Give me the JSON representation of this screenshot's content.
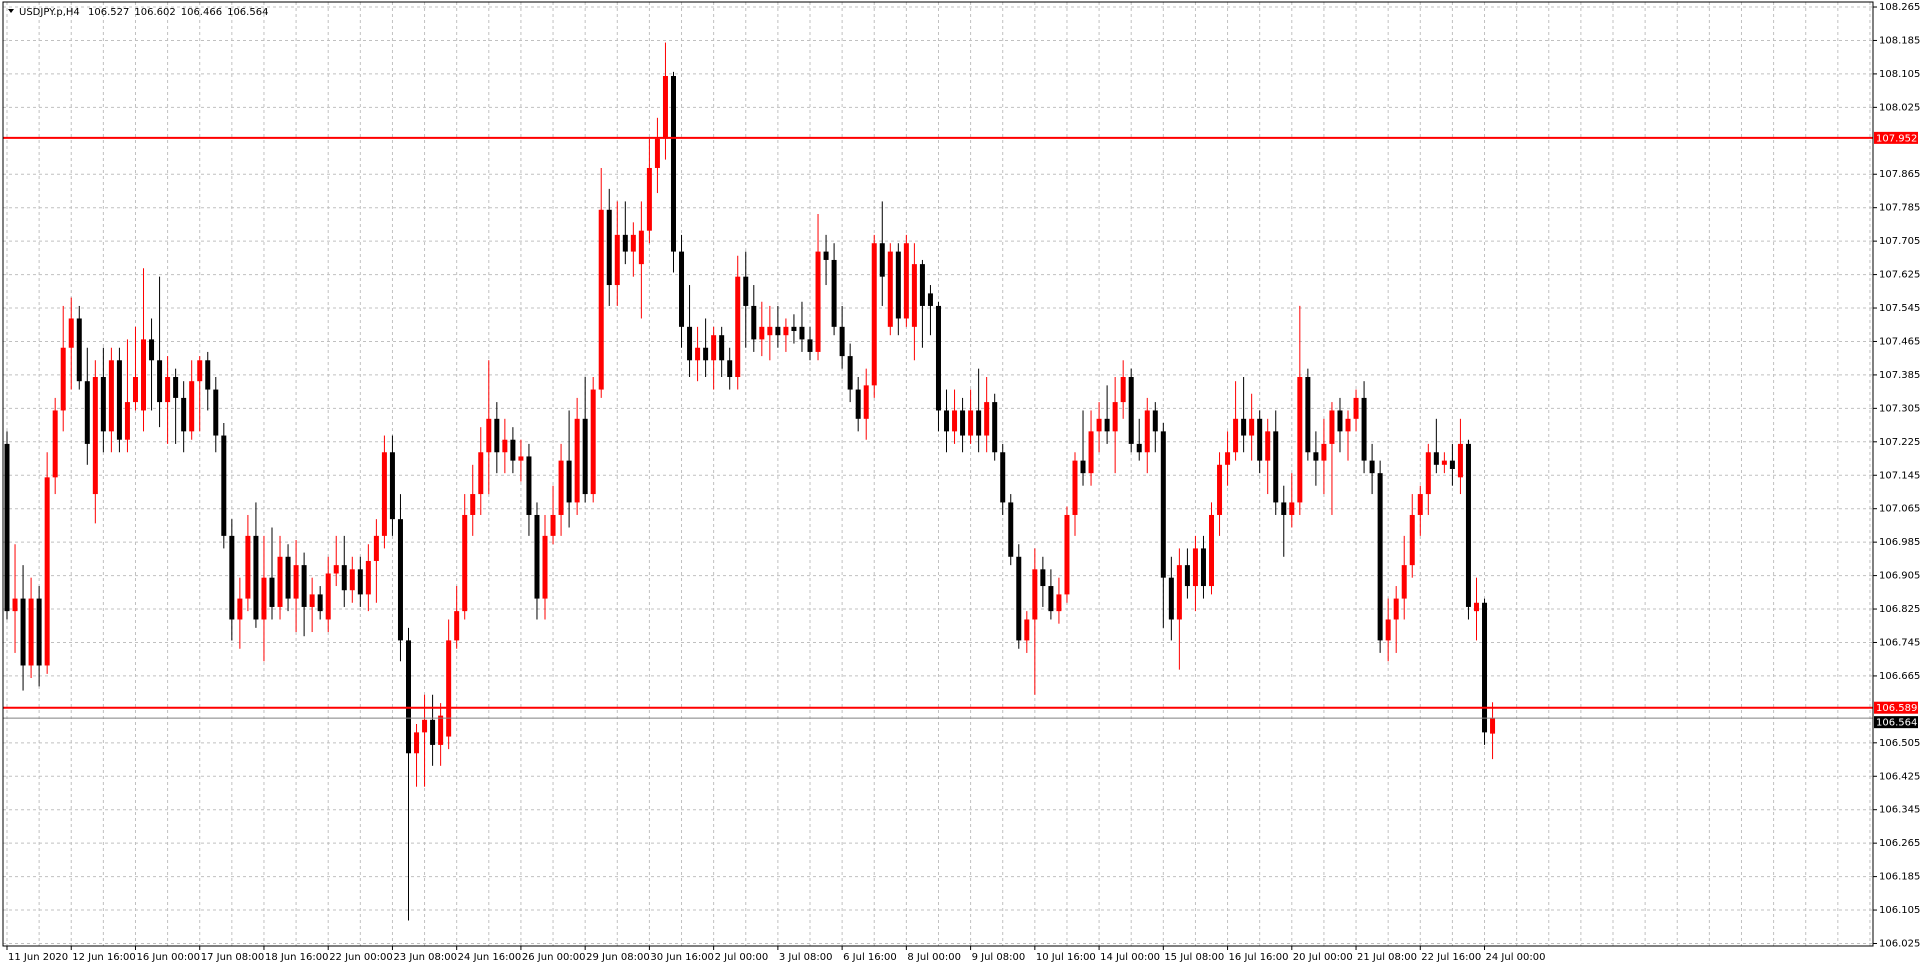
{
  "chart_data": {
    "type": "candlestick",
    "symbol": "USDJPY.p,H4",
    "header_values": [
      106.527,
      106.602,
      106.466,
      106.564
    ],
    "categories": [
      "11 Jun 2020",
      null,
      null,
      null,
      null,
      null,
      null,
      null,
      "12 Jun 16:00",
      null,
      null,
      null,
      null,
      null,
      null,
      null,
      "16 Jun 00:00",
      null,
      null,
      null,
      null,
      null,
      null,
      null,
      "17 Jun 08:00",
      null,
      null,
      null,
      null,
      null,
      null,
      null,
      "18 Jun 16:00",
      null,
      null,
      null,
      null,
      null,
      null,
      null,
      "22 Jun 00:00",
      null,
      null,
      null,
      null,
      null,
      null,
      null,
      "23 Jun 08:00",
      null,
      null,
      null,
      null,
      null,
      null,
      null,
      "24 Jun 16:00",
      null,
      null,
      null,
      null,
      null,
      null,
      null,
      "26 Jun 00:00",
      null,
      null,
      null,
      null,
      null,
      null,
      null,
      "29 Jun 08:00",
      null,
      null,
      null,
      null,
      null,
      null,
      null,
      "30 Jun 16:00",
      null,
      null,
      null,
      null,
      null,
      null,
      null,
      "2 Jul 00:00",
      null,
      null,
      null,
      null,
      null,
      null,
      null,
      "3 Jul 08:00",
      null,
      null,
      null,
      null,
      null,
      null,
      null,
      "6 Jul 16:00",
      null,
      null,
      null,
      null,
      null,
      null,
      null,
      "8 Jul 00:00",
      null,
      null,
      null,
      null,
      null,
      null,
      null,
      "9 Jul 08:00",
      null,
      null,
      null,
      null,
      null,
      null,
      null,
      "10 Jul 16:00",
      null,
      null,
      null,
      null,
      null,
      null,
      null,
      "14 Jul 00:00",
      null,
      null,
      null,
      null,
      null,
      null,
      null,
      "15 Jul 08:00",
      null,
      null,
      null,
      null,
      null,
      null,
      null,
      "16 Jul 16:00",
      null,
      null,
      null,
      null,
      null,
      null,
      null,
      "20 Jul 00:00",
      null,
      null,
      null,
      null,
      null,
      null,
      null,
      "21 Jul 08:00",
      null,
      null,
      null,
      null,
      null,
      null,
      null,
      "22 Jul 16:00",
      null,
      null,
      null,
      null,
      null,
      null,
      null,
      "24 Jul 00:00",
      null
    ],
    "ohlc": [
      [
        107.22,
        107.25,
        106.8,
        106.82
      ],
      [
        106.82,
        106.98,
        106.72,
        106.85
      ],
      [
        106.85,
        106.93,
        106.63,
        106.69
      ],
      [
        106.69,
        106.9,
        106.66,
        106.85
      ],
      [
        106.85,
        106.88,
        106.64,
        106.69
      ],
      [
        106.69,
        107.2,
        106.67,
        107.14
      ],
      [
        107.14,
        107.33,
        107.1,
        107.3
      ],
      [
        107.3,
        107.55,
        107.25,
        107.45
      ],
      [
        107.45,
        107.57,
        107.35,
        107.52
      ],
      [
        107.52,
        107.55,
        107.35,
        107.37
      ],
      [
        107.37,
        107.45,
        107.17,
        107.22
      ],
      [
        107.1,
        107.42,
        107.03,
        107.38
      ],
      [
        107.38,
        107.45,
        107.2,
        107.25
      ],
      [
        107.25,
        107.45,
        107.2,
        107.42
      ],
      [
        107.42,
        107.45,
        107.2,
        107.23
      ],
      [
        107.23,
        107.47,
        107.2,
        107.32
      ],
      [
        107.32,
        107.5,
        107.3,
        107.38
      ],
      [
        107.3,
        107.64,
        107.25,
        107.47
      ],
      [
        107.47,
        107.52,
        107.3,
        107.42
      ],
      [
        107.42,
        107.62,
        107.26,
        107.32
      ],
      [
        107.32,
        107.43,
        107.22,
        107.38
      ],
      [
        107.38,
        107.4,
        107.22,
        107.33
      ],
      [
        107.33,
        107.37,
        107.2,
        107.25
      ],
      [
        107.25,
        107.42,
        107.23,
        107.37
      ],
      [
        107.37,
        107.43,
        107.25,
        107.42
      ],
      [
        107.42,
        107.44,
        107.3,
        107.35
      ],
      [
        107.35,
        107.38,
        107.2,
        107.24
      ],
      [
        107.24,
        107.27,
        106.97,
        107.0
      ],
      [
        107.0,
        107.04,
        106.75,
        106.8
      ],
      [
        106.8,
        106.9,
        106.73,
        106.85
      ],
      [
        106.85,
        107.05,
        106.82,
        107.0
      ],
      [
        107.0,
        107.08,
        106.78,
        106.8
      ],
      [
        106.8,
        107.0,
        106.7,
        106.9
      ],
      [
        106.9,
        107.02,
        106.8,
        106.83
      ],
      [
        106.83,
        107.0,
        106.8,
        106.95
      ],
      [
        106.95,
        106.98,
        106.82,
        106.85
      ],
      [
        106.85,
        106.99,
        106.77,
        106.93
      ],
      [
        106.93,
        106.96,
        106.76,
        106.83
      ],
      [
        106.83,
        106.9,
        106.77,
        106.86
      ],
      [
        106.86,
        106.88,
        106.8,
        106.82
      ],
      [
        106.8,
        106.95,
        106.77,
        106.91
      ],
      [
        106.91,
        107.0,
        106.88,
        106.93
      ],
      [
        106.93,
        107.0,
        106.83,
        106.87
      ],
      [
        106.87,
        106.95,
        106.84,
        106.92
      ],
      [
        106.92,
        106.95,
        106.83,
        106.86
      ],
      [
        106.86,
        106.98,
        106.82,
        106.94
      ],
      [
        106.94,
        107.04,
        106.84,
        107.0
      ],
      [
        107.0,
        107.24,
        106.97,
        107.2
      ],
      [
        107.2,
        107.24,
        107.0,
        107.04
      ],
      [
        107.04,
        107.1,
        106.7,
        106.75
      ],
      [
        106.75,
        106.78,
        106.08,
        106.48
      ],
      [
        106.48,
        106.55,
        106.4,
        106.53
      ],
      [
        106.53,
        106.62,
        106.4,
        106.56
      ],
      [
        106.56,
        106.62,
        106.45,
        106.5
      ],
      [
        106.5,
        106.6,
        106.45,
        106.57
      ],
      [
        106.52,
        106.8,
        106.49,
        106.75
      ],
      [
        106.75,
        106.88,
        106.73,
        106.82
      ],
      [
        106.82,
        107.1,
        106.8,
        107.05
      ],
      [
        107.05,
        107.17,
        107.0,
        107.1
      ],
      [
        107.1,
        107.26,
        107.05,
        107.2
      ],
      [
        107.2,
        107.42,
        107.1,
        107.28
      ],
      [
        107.28,
        107.32,
        107.15,
        107.2
      ],
      [
        107.2,
        107.28,
        107.15,
        107.23
      ],
      [
        107.23,
        107.26,
        107.15,
        107.18
      ],
      [
        107.18,
        107.23,
        107.13,
        107.19
      ],
      [
        107.19,
        107.22,
        107.0,
        107.05
      ],
      [
        107.05,
        107.08,
        106.8,
        106.85
      ],
      [
        106.85,
        107.05,
        106.8,
        107.0
      ],
      [
        107.0,
        107.12,
        106.98,
        107.05
      ],
      [
        107.05,
        107.22,
        107.0,
        107.18
      ],
      [
        107.18,
        107.3,
        107.02,
        107.08
      ],
      [
        107.08,
        107.33,
        107.05,
        107.28
      ],
      [
        107.28,
        107.38,
        107.08,
        107.1
      ],
      [
        107.1,
        107.38,
        107.08,
        107.35
      ],
      [
        107.35,
        107.88,
        107.33,
        107.78
      ],
      [
        107.78,
        107.83,
        107.55,
        107.6
      ],
      [
        107.6,
        107.8,
        107.55,
        107.72
      ],
      [
        107.72,
        107.8,
        107.65,
        107.68
      ],
      [
        107.68,
        107.75,
        107.62,
        107.72
      ],
      [
        107.65,
        107.8,
        107.52,
        107.73
      ],
      [
        107.73,
        107.95,
        107.7,
        107.88
      ],
      [
        107.88,
        108.0,
        107.82,
        107.95
      ],
      [
        107.95,
        108.18,
        107.9,
        108.1
      ],
      [
        108.1,
        108.11,
        107.63,
        107.68
      ],
      [
        107.68,
        107.72,
        107.45,
        107.5
      ],
      [
        107.5,
        107.6,
        107.38,
        107.42
      ],
      [
        107.42,
        107.5,
        107.37,
        107.45
      ],
      [
        107.45,
        107.52,
        107.38,
        107.42
      ],
      [
        107.42,
        107.5,
        107.35,
        107.48
      ],
      [
        107.48,
        107.5,
        107.38,
        107.42
      ],
      [
        107.42,
        107.45,
        107.35,
        107.38
      ],
      [
        107.38,
        107.67,
        107.35,
        107.62
      ],
      [
        107.62,
        107.68,
        107.45,
        107.55
      ],
      [
        107.55,
        107.6,
        107.44,
        107.47
      ],
      [
        107.47,
        107.56,
        107.43,
        107.5
      ],
      [
        107.48,
        107.55,
        107.42,
        107.5
      ],
      [
        107.5,
        107.55,
        107.45,
        107.48
      ],
      [
        107.48,
        107.52,
        107.44,
        107.5
      ],
      [
        107.5,
        107.53,
        107.46,
        107.49
      ],
      [
        107.5,
        107.56,
        107.44,
        107.47
      ],
      [
        107.47,
        107.5,
        107.42,
        107.44
      ],
      [
        107.44,
        107.77,
        107.42,
        107.68
      ],
      [
        107.68,
        107.72,
        107.6,
        107.66
      ],
      [
        107.66,
        107.7,
        107.48,
        107.5
      ],
      [
        107.5,
        107.55,
        107.4,
        107.43
      ],
      [
        107.43,
        107.46,
        107.32,
        107.35
      ],
      [
        107.35,
        107.38,
        107.25,
        107.28
      ],
      [
        107.28,
        107.4,
        107.23,
        107.36
      ],
      [
        107.36,
        107.72,
        107.33,
        107.7
      ],
      [
        107.7,
        107.8,
        107.55,
        107.62
      ],
      [
        107.5,
        107.7,
        107.48,
        107.68
      ],
      [
        107.68,
        107.7,
        107.48,
        107.52
      ],
      [
        107.52,
        107.72,
        107.5,
        107.7
      ],
      [
        107.5,
        107.7,
        107.42,
        107.65
      ],
      [
        107.65,
        107.66,
        107.45,
        107.55
      ],
      [
        107.58,
        107.6,
        107.48,
        107.55
      ],
      [
        107.55,
        107.56,
        107.25,
        107.3
      ],
      [
        107.3,
        107.35,
        107.2,
        107.25
      ],
      [
        107.25,
        107.35,
        107.22,
        107.3
      ],
      [
        107.3,
        107.33,
        107.2,
        107.24
      ],
      [
        107.24,
        107.35,
        107.22,
        107.3
      ],
      [
        107.3,
        107.4,
        107.2,
        107.24
      ],
      [
        107.24,
        107.38,
        107.2,
        107.32
      ],
      [
        107.32,
        107.34,
        107.18,
        107.2
      ],
      [
        107.2,
        107.22,
        107.05,
        107.08
      ],
      [
        107.08,
        107.1,
        106.93,
        106.95
      ],
      [
        106.95,
        106.98,
        106.73,
        106.75
      ],
      [
        106.75,
        106.82,
        106.72,
        106.8
      ],
      [
        106.8,
        106.97,
        106.62,
        106.92
      ],
      [
        106.92,
        106.95,
        106.83,
        106.88
      ],
      [
        106.88,
        106.92,
        106.8,
        106.82
      ],
      [
        106.82,
        106.9,
        106.79,
        106.86
      ],
      [
        106.86,
        107.07,
        106.84,
        107.05
      ],
      [
        107.05,
        107.2,
        107.0,
        107.18
      ],
      [
        107.18,
        107.3,
        107.12,
        107.15
      ],
      [
        107.15,
        107.3,
        107.12,
        107.25
      ],
      [
        107.25,
        107.32,
        107.2,
        107.28
      ],
      [
        107.28,
        107.36,
        107.22,
        107.25
      ],
      [
        107.25,
        107.38,
        107.15,
        107.32
      ],
      [
        107.32,
        107.42,
        107.28,
        107.38
      ],
      [
        107.38,
        107.4,
        107.2,
        107.22
      ],
      [
        107.22,
        107.28,
        107.18,
        107.2
      ],
      [
        107.2,
        107.33,
        107.15,
        107.3
      ],
      [
        107.3,
        107.32,
        107.2,
        107.25
      ],
      [
        107.25,
        107.27,
        106.78,
        106.9
      ],
      [
        106.9,
        106.95,
        106.75,
        106.8
      ],
      [
        106.8,
        106.97,
        106.68,
        106.93
      ],
      [
        106.93,
        106.97,
        106.85,
        106.88
      ],
      [
        106.88,
        107.0,
        106.82,
        106.97
      ],
      [
        106.97,
        107.0,
        106.85,
        106.88
      ],
      [
        106.88,
        107.08,
        106.86,
        107.05
      ],
      [
        107.05,
        107.2,
        107.0,
        107.17
      ],
      [
        107.17,
        107.25,
        107.12,
        107.2
      ],
      [
        107.2,
        107.37,
        107.18,
        107.28
      ],
      [
        107.28,
        107.38,
        107.2,
        107.24
      ],
      [
        107.24,
        107.34,
        107.18,
        107.28
      ],
      [
        107.28,
        107.3,
        107.15,
        107.18
      ],
      [
        107.18,
        107.28,
        107.1,
        107.25
      ],
      [
        107.25,
        107.3,
        107.05,
        107.08
      ],
      [
        107.08,
        107.12,
        106.95,
        107.05
      ],
      [
        107.05,
        107.15,
        107.02,
        107.08
      ],
      [
        107.08,
        107.55,
        107.05,
        107.38
      ],
      [
        107.38,
        107.4,
        107.18,
        107.2
      ],
      [
        107.2,
        107.25,
        107.12,
        107.18
      ],
      [
        107.18,
        107.28,
        107.1,
        107.22
      ],
      [
        107.22,
        107.32,
        107.05,
        107.3
      ],
      [
        107.3,
        107.33,
        107.2,
        107.25
      ],
      [
        107.25,
        107.3,
        107.18,
        107.28
      ],
      [
        107.28,
        107.35,
        107.25,
        107.33
      ],
      [
        107.33,
        107.37,
        107.15,
        107.18
      ],
      [
        107.18,
        107.22,
        107.1,
        107.15
      ],
      [
        107.15,
        107.18,
        106.72,
        106.75
      ],
      [
        106.75,
        106.85,
        106.7,
        106.8
      ],
      [
        106.8,
        106.88,
        106.72,
        106.85
      ],
      [
        106.85,
        107.0,
        106.8,
        106.93
      ],
      [
        106.93,
        107.1,
        106.9,
        107.05
      ],
      [
        107.05,
        107.12,
        107.0,
        107.1
      ],
      [
        107.1,
        107.22,
        107.05,
        107.2
      ],
      [
        107.2,
        107.28,
        107.15,
        107.17
      ],
      [
        107.17,
        107.2,
        107.15,
        107.18
      ],
      [
        107.18,
        107.22,
        107.12,
        107.16
      ],
      [
        107.14,
        107.28,
        107.1,
        107.22
      ],
      [
        107.22,
        107.23,
        106.8,
        106.83
      ],
      [
        106.82,
        106.9,
        106.75,
        106.84
      ],
      [
        106.84,
        106.85,
        106.5,
        106.53
      ],
      [
        106.527,
        106.602,
        106.466,
        106.564
      ]
    ],
    "up_color": "#ff0000",
    "down_color": "#000000",
    "ylim": [
      106.019,
      108.277
    ],
    "yticks": [
      108.265,
      108.185,
      108.105,
      108.025,
      107.865,
      107.785,
      107.705,
      107.625,
      107.545,
      107.465,
      107.385,
      107.305,
      107.225,
      107.145,
      107.065,
      106.985,
      106.905,
      106.825,
      106.745,
      106.665,
      106.505,
      106.425,
      106.345,
      106.265,
      106.185,
      106.105,
      106.025
    ],
    "grid": true,
    "levels": [
      {
        "value": 107.952,
        "color": "#ff0000"
      },
      {
        "value": 106.589,
        "color": "#ff0000"
      }
    ],
    "bid": 106.564
  }
}
